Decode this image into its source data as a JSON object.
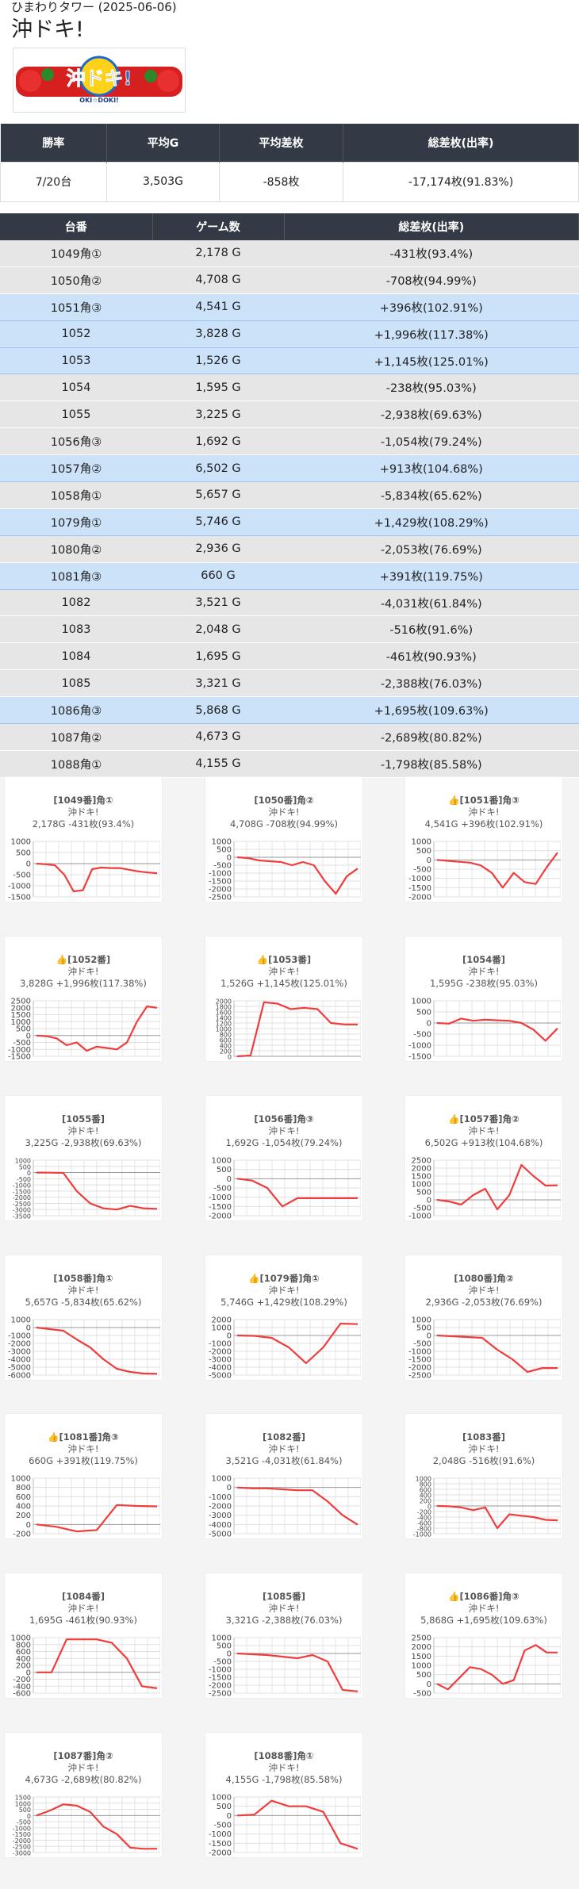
{
  "header": {
    "site": "ひまわりタワー (2025-06-06)",
    "title": "沖ドキ!"
  },
  "logo": {
    "text": "沖ドキ!",
    "sub": "OKI☆DOKI!"
  },
  "summary": {
    "headers": [
      "勝率",
      "平均G",
      "平均差枚",
      "総差枚(出率)"
    ],
    "values": [
      "7/20台",
      "3,503G",
      "-858枚",
      "-17,174枚(91.83%)"
    ]
  },
  "machines": {
    "headers": [
      "台番",
      "ゲーム数",
      "総差枚(出率)"
    ],
    "rows": [
      {
        "id": "1049角①",
        "games": "2,178 G",
        "diff": "-431枚(93.4%)",
        "win": false
      },
      {
        "id": "1050角②",
        "games": "4,708 G",
        "diff": "-708枚(94.99%)",
        "win": false
      },
      {
        "id": "1051角③",
        "games": "4,541 G",
        "diff": "+396枚(102.91%)",
        "win": true
      },
      {
        "id": "1052",
        "games": "3,828 G",
        "diff": "+1,996枚(117.38%)",
        "win": true
      },
      {
        "id": "1053",
        "games": "1,526 G",
        "diff": "+1,145枚(125.01%)",
        "win": true
      },
      {
        "id": "1054",
        "games": "1,595 G",
        "diff": "-238枚(95.03%)",
        "win": false
      },
      {
        "id": "1055",
        "games": "3,225 G",
        "diff": "-2,938枚(69.63%)",
        "win": false
      },
      {
        "id": "1056角③",
        "games": "1,692 G",
        "diff": "-1,054枚(79.24%)",
        "win": false
      },
      {
        "id": "1057角②",
        "games": "6,502 G",
        "diff": "+913枚(104.68%)",
        "win": true
      },
      {
        "id": "1058角①",
        "games": "5,657 G",
        "diff": "-5,834枚(65.62%)",
        "win": false
      },
      {
        "id": "1079角①",
        "games": "5,746 G",
        "diff": "+1,429枚(108.29%)",
        "win": true
      },
      {
        "id": "1080角②",
        "games": "2,936 G",
        "diff": "-2,053枚(76.69%)",
        "win": false
      },
      {
        "id": "1081角③",
        "games": "660 G",
        "diff": "+391枚(119.75%)",
        "win": true
      },
      {
        "id": "1082",
        "games": "3,521 G",
        "diff": "-4,031枚(61.84%)",
        "win": false
      },
      {
        "id": "1083",
        "games": "2,048 G",
        "diff": "-516枚(91.6%)",
        "win": false
      },
      {
        "id": "1084",
        "games": "1,695 G",
        "diff": "-461枚(90.93%)",
        "win": false
      },
      {
        "id": "1085",
        "games": "3,321 G",
        "diff": "-2,388枚(76.03%)",
        "win": false
      },
      {
        "id": "1086角③",
        "games": "5,868 G",
        "diff": "+1,695枚(109.63%)",
        "win": true
      },
      {
        "id": "1087角②",
        "games": "4,673 G",
        "diff": "-2,689枚(80.82%)",
        "win": false
      },
      {
        "id": "1088角①",
        "games": "4,155 G",
        "diff": "-1,798枚(85.58%)",
        "win": false
      }
    ]
  },
  "chart_data": [
    {
      "type": "line",
      "title": "[1049番]角①",
      "subtitle": "沖ドキ!",
      "summary": "2,178G -431枚(93.4%)",
      "win": false,
      "yticks": [
        1000,
        500,
        0,
        -500,
        -1000,
        -1500
      ],
      "ylim": [
        -1500,
        1000
      ],
      "values": [
        0,
        -30,
        -80,
        -500,
        -1250,
        -1200,
        -250,
        -180,
        -200,
        -200,
        -280,
        -350,
        -400,
        -431
      ]
    },
    {
      "type": "line",
      "title": "[1050番]角②",
      "subtitle": "沖ドキ!",
      "summary": "4,708G -708枚(94.99%)",
      "win": false,
      "yticks": [
        1000,
        500,
        0,
        -500,
        -1000,
        -1500,
        -2000,
        -2500
      ],
      "ylim": [
        -2500,
        1000
      ],
      "values": [
        0,
        -50,
        -200,
        -250,
        -300,
        -500,
        -300,
        -500,
        -1500,
        -2300,
        -1200,
        -708
      ]
    },
    {
      "type": "line",
      "title": "👍[1051番]角③",
      "subtitle": "沖ドキ!",
      "summary": "4,541G +396枚(102.91%)",
      "win": true,
      "yticks": [
        1000,
        500,
        0,
        -500,
        -1000,
        -1500,
        -2000
      ],
      "ylim": [
        -2000,
        1000
      ],
      "values": [
        0,
        -50,
        -100,
        -150,
        -300,
        -700,
        -1500,
        -700,
        -1200,
        -1300,
        -400,
        396
      ]
    },
    {
      "type": "line",
      "title": "👍[1052番]",
      "subtitle": "沖ドキ!",
      "summary": "3,828G +1,996枚(117.38%)",
      "win": true,
      "yticks": [
        2500,
        2000,
        1500,
        1000,
        500,
        0,
        -500,
        -1000,
        -1500
      ],
      "ylim": [
        -1500,
        2500
      ],
      "values": [
        0,
        -50,
        -200,
        -700,
        -500,
        -1100,
        -800,
        -900,
        -1000,
        -500,
        1000,
        2100,
        1996
      ]
    },
    {
      "type": "line",
      "title": "👍[1053番]",
      "subtitle": "沖ドキ!",
      "summary": "1,526G +1,145枚(125.01%)",
      "win": true,
      "yticks": [
        2000,
        1800,
        1600,
        1400,
        1200,
        1000,
        800,
        600,
        400,
        200,
        0
      ],
      "ylim": [
        0,
        2000
      ],
      "values": [
        0,
        30,
        1950,
        1900,
        1700,
        1750,
        1700,
        1200,
        1150,
        1145
      ]
    },
    {
      "type": "line",
      "title": "[1054番]",
      "subtitle": "沖ドキ!",
      "summary": "1,595G -238枚(95.03%)",
      "win": false,
      "yticks": [
        1000,
        500,
        0,
        -500,
        -1000,
        -1500
      ],
      "ylim": [
        -1500,
        1000
      ],
      "values": [
        0,
        -30,
        200,
        100,
        150,
        120,
        100,
        0,
        -300,
        -800,
        -238
      ]
    },
    {
      "type": "line",
      "title": "[1055番]",
      "subtitle": "沖ドキ!",
      "summary": "3,225G -2,938枚(69.63%)",
      "win": false,
      "yticks": [
        1000,
        500,
        0,
        -500,
        -1000,
        -1500,
        -2000,
        -2500,
        -3000,
        -3500
      ],
      "ylim": [
        -3500,
        1000
      ],
      "values": [
        0,
        -10,
        -30,
        -1500,
        -2500,
        -2900,
        -3000,
        -2700,
        -2900,
        -2938
      ]
    },
    {
      "type": "line",
      "title": "[1056番]角③",
      "subtitle": "沖ドキ!",
      "summary": "1,692G -1,054枚(79.24%)",
      "win": false,
      "yticks": [
        1000,
        500,
        0,
        -500,
        -1000,
        -1500,
        -2000
      ],
      "ylim": [
        -2000,
        1000
      ],
      "values": [
        0,
        -100,
        -500,
        -1500,
        -1054,
        -1054,
        -1054,
        -1054,
        -1054
      ]
    },
    {
      "type": "line",
      "title": "👍[1057番]角②",
      "subtitle": "沖ドキ!",
      "summary": "6,502G +913枚(104.68%)",
      "win": true,
      "yticks": [
        2500,
        2000,
        1500,
        1000,
        500,
        0,
        -500,
        -1000
      ],
      "ylim": [
        -1000,
        2500
      ],
      "values": [
        0,
        -100,
        -300,
        300,
        700,
        -600,
        300,
        2200,
        1500,
        900,
        913
      ]
    },
    {
      "type": "line",
      "title": "[1058番]角①",
      "subtitle": "沖ドキ!",
      "summary": "5,657G -5,834枚(65.62%)",
      "win": false,
      "yticks": [
        1000,
        0,
        -1000,
        -2000,
        -3000,
        -4000,
        -5000,
        -6000
      ],
      "ylim": [
        -6000,
        1000
      ],
      "values": [
        0,
        -200,
        -400,
        -1500,
        -2500,
        -4000,
        -5200,
        -5600,
        -5800,
        -5834
      ]
    },
    {
      "type": "line",
      "title": "👍[1079番]角①",
      "subtitle": "沖ドキ!",
      "summary": "5,746G +1,429枚(108.29%)",
      "win": true,
      "yticks": [
        2000,
        1000,
        0,
        -1000,
        -2000,
        -3000,
        -4000,
        -5000
      ],
      "ylim": [
        -5000,
        2000
      ],
      "values": [
        0,
        -50,
        -300,
        -1500,
        -3500,
        -1500,
        1500,
        1429
      ]
    },
    {
      "type": "line",
      "title": "[1080番]角②",
      "subtitle": "沖ドキ!",
      "summary": "2,936G -2,053枚(76.69%)",
      "win": false,
      "yticks": [
        1000,
        500,
        0,
        -500,
        -1000,
        -1500,
        -2000,
        -2500
      ],
      "ylim": [
        -2500,
        1000
      ],
      "values": [
        0,
        -50,
        -100,
        -150,
        -900,
        -1500,
        -2300,
        -2050,
        -2053
      ]
    },
    {
      "type": "line",
      "title": "👍[1081番]角③",
      "subtitle": "沖ドキ!",
      "summary": "660G +391枚(119.75%)",
      "win": true,
      "yticks": [
        1000,
        800,
        600,
        400,
        200,
        0,
        -200
      ],
      "ylim": [
        -200,
        1000
      ],
      "values": [
        0,
        -50,
        -150,
        -120,
        420,
        400,
        391
      ]
    },
    {
      "type": "line",
      "title": "[1082番]",
      "subtitle": "沖ドキ!",
      "summary": "3,521G -4,031枚(61.84%)",
      "win": false,
      "yticks": [
        1000,
        0,
        -1000,
        -2000,
        -3000,
        -4000,
        -5000
      ],
      "ylim": [
        -5000,
        1000
      ],
      "values": [
        0,
        -100,
        -100,
        -200,
        -300,
        -300,
        -1500,
        -3000,
        -4031
      ]
    },
    {
      "type": "line",
      "title": "[1083番]",
      "subtitle": "沖ドキ!",
      "summary": "2,048G -516枚(91.6%)",
      "win": false,
      "yticks": [
        1000,
        800,
        600,
        400,
        200,
        0,
        -200,
        -400,
        -600,
        -800,
        -1000
      ],
      "ylim": [
        -1000,
        1000
      ],
      "values": [
        0,
        -10,
        -50,
        -150,
        -50,
        -800,
        -300,
        -350,
        -400,
        -500,
        -516
      ]
    },
    {
      "type": "line",
      "title": "[1084番]",
      "subtitle": "沖ドキ!",
      "summary": "1,695G -461枚(90.93%)",
      "win": false,
      "yticks": [
        1000,
        800,
        600,
        400,
        200,
        0,
        -200,
        -400,
        -600
      ],
      "ylim": [
        -600,
        1000
      ],
      "values": [
        0,
        0,
        950,
        950,
        950,
        850,
        400,
        -400,
        -461
      ]
    },
    {
      "type": "line",
      "title": "[1085番]",
      "subtitle": "沖ドキ!",
      "summary": "3,321G -2,388枚(76.03%)",
      "win": false,
      "yticks": [
        1000,
        500,
        0,
        -500,
        -1000,
        -1500,
        -2000,
        -2500
      ],
      "ylim": [
        -2500,
        1000
      ],
      "values": [
        0,
        -50,
        -100,
        -200,
        -300,
        -100,
        -500,
        -2300,
        -2388
      ]
    },
    {
      "type": "line",
      "title": "👍[1086番]角③",
      "subtitle": "沖ドキ!",
      "summary": "5,868G +1,695枚(109.63%)",
      "win": true,
      "yticks": [
        2500,
        2000,
        1500,
        1000,
        500,
        0,
        -500
      ],
      "ylim": [
        -500,
        2500
      ],
      "values": [
        0,
        -300,
        300,
        900,
        800,
        500,
        0,
        200,
        1800,
        2100,
        1700,
        1695
      ]
    },
    {
      "type": "line",
      "title": "[1087番]角②",
      "subtitle": "沖ドキ!",
      "summary": "4,673G -2,689枚(80.82%)",
      "win": false,
      "yticks": [
        1500,
        1000,
        500,
        0,
        -500,
        -1000,
        -1500,
        -2000,
        -2500,
        -3000
      ],
      "ylim": [
        -3000,
        1500
      ],
      "values": [
        0,
        400,
        900,
        800,
        300,
        -900,
        -1500,
        -2600,
        -2700,
        -2689
      ]
    },
    {
      "type": "line",
      "title": "[1088番]角①",
      "subtitle": "沖ドキ!",
      "summary": "4,155G -1,798枚(85.58%)",
      "win": false,
      "yticks": [
        1000,
        500,
        0,
        -500,
        -1000,
        -1500,
        -2000
      ],
      "ylim": [
        -2000,
        1000
      ],
      "values": [
        0,
        50,
        800,
        500,
        500,
        200,
        -1500,
        -1798
      ]
    }
  ]
}
